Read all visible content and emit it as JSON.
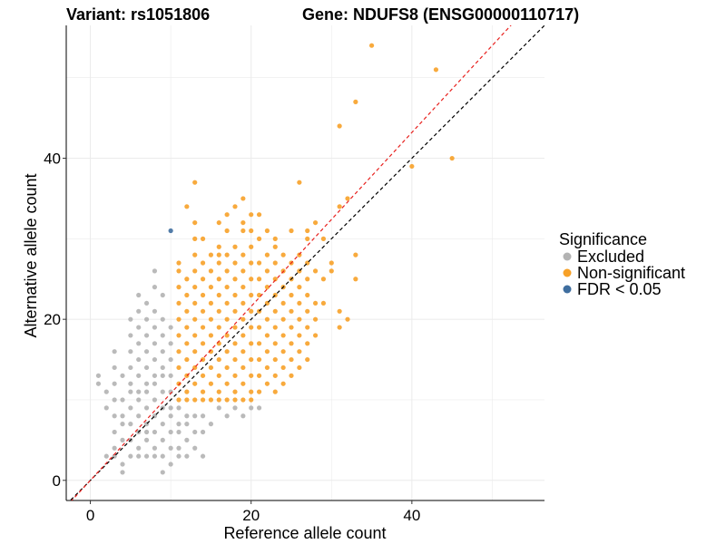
{
  "chart_data": {
    "type": "scatter",
    "title_left": "Variant: rs1051806",
    "title_right": "Gene: NDUFS8 (ENSG00000110717)",
    "xlabel": "Reference allele count",
    "ylabel": "Alternative allele count",
    "xlim": [
      -3,
      56.5
    ],
    "ylim": [
      -2.5,
      56.5
    ],
    "xticks": [
      0,
      20,
      40
    ],
    "yticks": [
      0,
      20,
      40
    ],
    "grid": true,
    "legend": {
      "title": "Significance",
      "position": "right",
      "entries": [
        {
          "label": "Excluded",
          "color": "#b3b3b3"
        },
        {
          "label": "Non-significant",
          "color": "#f7a128"
        },
        {
          "label": "FDR < 0.05",
          "color": "#3f6e9f"
        }
      ]
    },
    "reference_lines": [
      {
        "name": "identity",
        "color": "#000000",
        "slope": 1,
        "intercept": 0
      },
      {
        "name": "fit",
        "color": "#e8201d",
        "slope": 1.08,
        "intercept": 0
      }
    ],
    "series": [
      {
        "name": "Excluded",
        "color": "#b3b3b3",
        "points": [
          [
            1,
            12
          ],
          [
            2,
            11
          ],
          [
            3,
            10
          ],
          [
            2,
            3
          ],
          [
            3,
            3
          ],
          [
            4,
            2
          ],
          [
            3,
            4
          ],
          [
            4,
            1
          ],
          [
            5,
            3
          ],
          [
            3,
            6
          ],
          [
            4,
            5
          ],
          [
            4,
            7
          ],
          [
            4,
            8
          ],
          [
            3,
            8
          ],
          [
            4,
            10
          ],
          [
            3,
            12
          ],
          [
            4,
            13
          ],
          [
            3,
            14
          ],
          [
            5,
            5
          ],
          [
            5,
            7
          ],
          [
            5,
            9
          ],
          [
            5,
            11
          ],
          [
            5,
            12
          ],
          [
            5,
            14
          ],
          [
            5,
            16
          ],
          [
            5,
            18
          ],
          [
            5,
            20
          ],
          [
            6,
            3
          ],
          [
            6,
            4
          ],
          [
            6,
            6
          ],
          [
            6,
            8
          ],
          [
            6,
            10
          ],
          [
            6,
            11
          ],
          [
            6,
            13
          ],
          [
            6,
            15
          ],
          [
            6,
            17
          ],
          [
            6,
            19
          ],
          [
            7,
            3
          ],
          [
            7,
            5
          ],
          [
            7,
            6
          ],
          [
            7,
            7
          ],
          [
            7,
            9
          ],
          [
            7,
            11
          ],
          [
            7,
            12
          ],
          [
            7,
            14
          ],
          [
            7,
            16
          ],
          [
            7,
            18
          ],
          [
            7,
            20
          ],
          [
            7,
            22
          ],
          [
            8,
            3
          ],
          [
            8,
            4
          ],
          [
            8,
            6
          ],
          [
            8,
            8
          ],
          [
            8,
            10
          ],
          [
            8,
            12
          ],
          [
            8,
            13
          ],
          [
            8,
            15
          ],
          [
            8,
            17
          ],
          [
            8,
            19
          ],
          [
            8,
            21
          ],
          [
            8,
            24
          ],
          [
            9,
            3
          ],
          [
            9,
            5
          ],
          [
            9,
            7
          ],
          [
            9,
            9
          ],
          [
            9,
            11
          ],
          [
            9,
            13
          ],
          [
            9,
            14
          ],
          [
            9,
            16
          ],
          [
            9,
            18
          ],
          [
            9,
            20
          ],
          [
            9,
            23
          ],
          [
            10,
            4
          ],
          [
            10,
            6
          ],
          [
            10,
            8
          ],
          [
            10,
            9
          ],
          [
            10,
            11
          ],
          [
            10,
            13
          ],
          [
            10,
            15
          ],
          [
            10,
            17
          ],
          [
            10,
            19
          ],
          [
            11,
            4
          ],
          [
            11,
            6
          ],
          [
            11,
            7
          ],
          [
            11,
            9
          ],
          [
            12,
            5
          ],
          [
            12,
            7
          ],
          [
            12,
            8
          ],
          [
            13,
            4
          ],
          [
            13,
            6
          ],
          [
            13,
            8
          ],
          [
            14,
            6
          ],
          [
            14,
            8
          ],
          [
            15,
            7
          ],
          [
            16,
            9
          ],
          [
            17,
            8
          ],
          [
            18,
            9
          ],
          [
            19,
            8
          ],
          [
            20,
            9
          ],
          [
            21,
            9
          ],
          [
            14,
            3
          ],
          [
            12,
            3
          ],
          [
            11,
            3
          ],
          [
            2,
            9
          ],
          [
            1,
            13
          ],
          [
            3,
            16
          ],
          [
            6,
            21
          ],
          [
            6,
            23
          ],
          [
            8,
            26
          ],
          [
            10,
            2
          ],
          [
            9,
            1
          ]
        ]
      },
      {
        "name": "Non-significant",
        "color": "#f7a128",
        "points": [
          [
            11,
            10
          ],
          [
            11,
            12
          ],
          [
            11,
            14
          ],
          [
            11,
            16
          ],
          [
            11,
            18
          ],
          [
            11,
            20
          ],
          [
            11,
            22
          ],
          [
            11,
            24
          ],
          [
            11,
            26
          ],
          [
            11,
            27
          ],
          [
            12,
            10
          ],
          [
            12,
            11
          ],
          [
            12,
            13
          ],
          [
            12,
            15
          ],
          [
            12,
            17
          ],
          [
            12,
            19
          ],
          [
            12,
            21
          ],
          [
            12,
            23
          ],
          [
            12,
            25
          ],
          [
            13,
            10
          ],
          [
            13,
            12
          ],
          [
            13,
            14
          ],
          [
            13,
            16
          ],
          [
            13,
            18
          ],
          [
            13,
            20
          ],
          [
            13,
            22
          ],
          [
            13,
            24
          ],
          [
            13,
            26
          ],
          [
            13,
            28
          ],
          [
            14,
            10
          ],
          [
            14,
            11
          ],
          [
            14,
            13
          ],
          [
            14,
            15
          ],
          [
            14,
            17
          ],
          [
            14,
            19
          ],
          [
            14,
            21
          ],
          [
            14,
            23
          ],
          [
            14,
            25
          ],
          [
            14,
            27
          ],
          [
            14,
            30
          ],
          [
            15,
            10
          ],
          [
            15,
            12
          ],
          [
            15,
            14
          ],
          [
            15,
            16
          ],
          [
            15,
            18
          ],
          [
            15,
            20
          ],
          [
            15,
            22
          ],
          [
            15,
            24
          ],
          [
            15,
            26
          ],
          [
            15,
            28
          ],
          [
            16,
            10
          ],
          [
            16,
            11
          ],
          [
            16,
            13
          ],
          [
            16,
            15
          ],
          [
            16,
            17
          ],
          [
            16,
            19
          ],
          [
            16,
            21
          ],
          [
            16,
            23
          ],
          [
            16,
            25
          ],
          [
            16,
            27
          ],
          [
            16,
            29
          ],
          [
            16,
            32
          ],
          [
            17,
            10
          ],
          [
            17,
            12
          ],
          [
            17,
            14
          ],
          [
            17,
            16
          ],
          [
            17,
            18
          ],
          [
            17,
            20
          ],
          [
            17,
            22
          ],
          [
            17,
            24
          ],
          [
            17,
            26
          ],
          [
            17,
            28
          ],
          [
            17,
            31
          ],
          [
            18,
            10
          ],
          [
            18,
            11
          ],
          [
            18,
            13
          ],
          [
            18,
            15
          ],
          [
            18,
            17
          ],
          [
            18,
            19
          ],
          [
            18,
            21
          ],
          [
            18,
            23
          ],
          [
            18,
            25
          ],
          [
            18,
            27
          ],
          [
            18,
            29
          ],
          [
            18,
            34
          ],
          [
            19,
            10
          ],
          [
            19,
            12
          ],
          [
            19,
            14
          ],
          [
            19,
            16
          ],
          [
            19,
            18
          ],
          [
            19,
            20
          ],
          [
            19,
            22
          ],
          [
            19,
            24
          ],
          [
            19,
            26
          ],
          [
            19,
            28
          ],
          [
            19,
            31
          ],
          [
            20,
            10
          ],
          [
            20,
            11
          ],
          [
            20,
            13
          ],
          [
            20,
            15
          ],
          [
            20,
            17
          ],
          [
            20,
            19
          ],
          [
            20,
            21
          ],
          [
            20,
            23
          ],
          [
            20,
            25
          ],
          [
            20,
            27
          ],
          [
            20,
            29
          ],
          [
            20,
            33
          ],
          [
            21,
            11
          ],
          [
            21,
            13
          ],
          [
            21,
            15
          ],
          [
            21,
            17
          ],
          [
            21,
            19
          ],
          [
            21,
            21
          ],
          [
            21,
            23
          ],
          [
            21,
            25
          ],
          [
            21,
            27
          ],
          [
            21,
            30
          ],
          [
            22,
            12
          ],
          [
            22,
            14
          ],
          [
            22,
            16
          ],
          [
            22,
            18
          ],
          [
            22,
            20
          ],
          [
            22,
            22
          ],
          [
            22,
            24
          ],
          [
            22,
            26
          ],
          [
            22,
            28
          ],
          [
            23,
            11
          ],
          [
            23,
            13
          ],
          [
            23,
            15
          ],
          [
            23,
            17
          ],
          [
            23,
            19
          ],
          [
            23,
            21
          ],
          [
            23,
            23
          ],
          [
            23,
            25
          ],
          [
            23,
            27
          ],
          [
            23,
            30
          ],
          [
            24,
            12
          ],
          [
            24,
            14
          ],
          [
            24,
            16
          ],
          [
            24,
            18
          ],
          [
            24,
            20
          ],
          [
            24,
            22
          ],
          [
            24,
            24
          ],
          [
            24,
            26
          ],
          [
            24,
            28
          ],
          [
            25,
            13
          ],
          [
            25,
            15
          ],
          [
            25,
            17
          ],
          [
            25,
            19
          ],
          [
            25,
            21
          ],
          [
            25,
            23
          ],
          [
            25,
            25
          ],
          [
            25,
            27
          ],
          [
            25,
            31
          ],
          [
            26,
            14
          ],
          [
            26,
            16
          ],
          [
            26,
            18
          ],
          [
            26,
            20
          ],
          [
            26,
            22
          ],
          [
            26,
            24
          ],
          [
            26,
            26
          ],
          [
            26,
            28
          ],
          [
            26,
            37
          ],
          [
            27,
            15
          ],
          [
            27,
            17
          ],
          [
            27,
            19
          ],
          [
            27,
            21
          ],
          [
            27,
            23
          ],
          [
            27,
            25
          ],
          [
            27,
            27
          ],
          [
            27,
            30
          ],
          [
            28,
            18
          ],
          [
            28,
            20
          ],
          [
            28,
            22
          ],
          [
            28,
            26
          ],
          [
            28,
            32
          ],
          [
            29,
            22
          ],
          [
            29,
            25
          ],
          [
            29,
            30
          ],
          [
            30,
            26
          ],
          [
            30,
            27
          ],
          [
            31,
            19
          ],
          [
            31,
            21
          ],
          [
            31,
            34
          ],
          [
            32,
            20
          ],
          [
            32,
            35
          ],
          [
            33,
            28
          ],
          [
            33,
            25
          ],
          [
            12,
            34
          ],
          [
            13,
            32
          ],
          [
            13,
            30
          ],
          [
            13,
            37
          ],
          [
            19,
            35
          ],
          [
            19,
            32
          ],
          [
            17,
            33
          ],
          [
            16,
            28
          ],
          [
            20,
            31
          ],
          [
            22,
            31
          ],
          [
            23,
            29
          ],
          [
            27,
            31
          ],
          [
            21,
            33
          ],
          [
            31,
            44
          ],
          [
            33,
            47
          ],
          [
            35,
            54
          ],
          [
            43,
            51
          ],
          [
            40,
            39
          ],
          [
            45,
            40
          ]
        ]
      },
      {
        "name": "FDR < 0.05",
        "color": "#3f6e9f",
        "points": [
          [
            10,
            31
          ]
        ]
      }
    ]
  }
}
